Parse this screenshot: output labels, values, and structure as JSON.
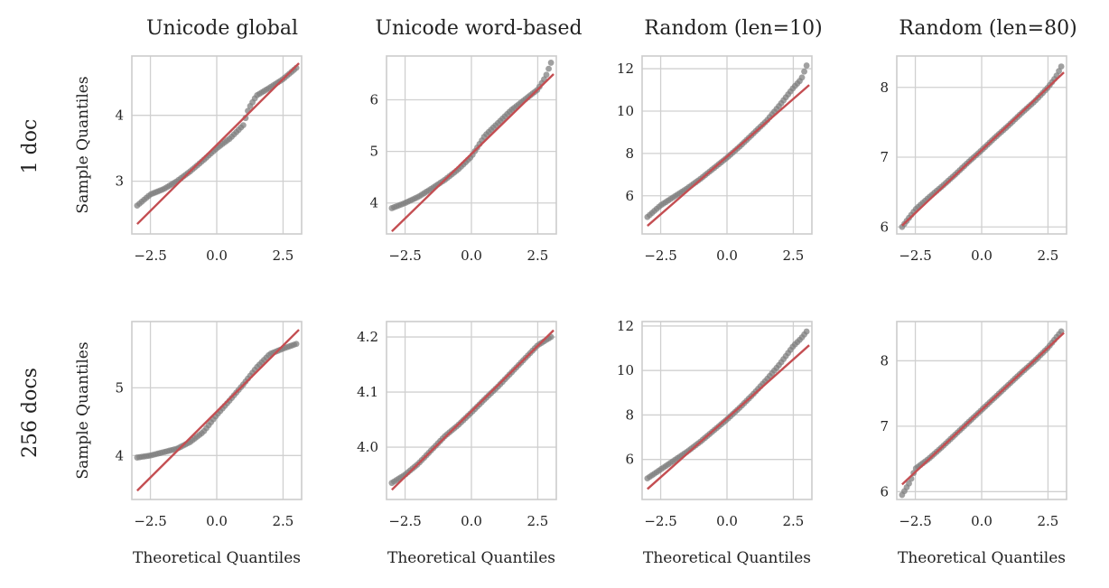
{
  "figure": {
    "row_labels": [
      "1 doc",
      "256 docs"
    ],
    "column_titles": [
      "Unicode global",
      "Unicode word-based",
      "Random (len=10)",
      "Random (len=80)"
    ],
    "xlabel": "Theoretical Quantiles",
    "ylabel": "Sample Quantiles"
  },
  "colors": {
    "points": "#808080",
    "reference_line": "#c44e52",
    "grid": "#d0d0d0",
    "frame": "#cccccc"
  },
  "chart_data": [
    {
      "type": "scatter",
      "title": "Unicode global",
      "row": "1 doc",
      "xlabel": "",
      "ylabel": "Sample Quantiles",
      "xlim": [
        -3.2,
        3.2
      ],
      "ylim": [
        2.2,
        4.9
      ],
      "xticks": [
        -2.5,
        0.0,
        2.5
      ],
      "xtick_labels": [
        "−2.5",
        "0.0",
        "2.5"
      ],
      "yticks": [
        3,
        4
      ],
      "ytick_labels": [
        "3",
        "4"
      ],
      "reference_line": {
        "slope": 0.4,
        "intercept": 3.55
      },
      "quantile_curve": [
        [
          -3.0,
          2.63
        ],
        [
          -2.5,
          2.8
        ],
        [
          -2.0,
          2.88
        ],
        [
          -1.5,
          3.0
        ],
        [
          -1.0,
          3.15
        ],
        [
          -0.5,
          3.32
        ],
        [
          0.0,
          3.5
        ],
        [
          0.5,
          3.65
        ],
        [
          1.0,
          3.85
        ],
        [
          1.2,
          4.1
        ],
        [
          1.5,
          4.3
        ],
        [
          2.0,
          4.42
        ],
        [
          2.5,
          4.55
        ],
        [
          3.0,
          4.72
        ]
      ],
      "grid": true
    },
    {
      "type": "scatter",
      "title": "Unicode word-based",
      "row": "1 doc",
      "xlabel": "",
      "ylabel": "",
      "xlim": [
        -3.2,
        3.2
      ],
      "ylim": [
        3.4,
        6.85
      ],
      "xticks": [
        -2.5,
        0.0,
        2.5
      ],
      "xtick_labels": [
        "−2.5",
        "0.0",
        "2.5"
      ],
      "yticks": [
        4,
        5,
        6
      ],
      "ytick_labels": [
        "4",
        "5",
        "6"
      ],
      "reference_line": {
        "slope": 0.5,
        "intercept": 4.95
      },
      "quantile_curve": [
        [
          -3.0,
          3.9
        ],
        [
          -2.5,
          4.0
        ],
        [
          -2.0,
          4.12
        ],
        [
          -1.5,
          4.28
        ],
        [
          -1.0,
          4.45
        ],
        [
          -0.5,
          4.65
        ],
        [
          0.0,
          4.9
        ],
        [
          0.5,
          5.3
        ],
        [
          1.0,
          5.55
        ],
        [
          1.5,
          5.8
        ],
        [
          2.0,
          6.0
        ],
        [
          2.5,
          6.2
        ],
        [
          2.8,
          6.45
        ],
        [
          3.0,
          6.72
        ]
      ],
      "grid": true
    },
    {
      "type": "scatter",
      "title": "Random (len=10)",
      "row": "1 doc",
      "xlabel": "",
      "ylabel": "",
      "xlim": [
        -3.2,
        3.2
      ],
      "ylim": [
        4.2,
        12.6
      ],
      "xticks": [
        -2.5,
        0.0,
        2.5
      ],
      "xtick_labels": [
        "−2.5",
        "0.0",
        "2.5"
      ],
      "yticks": [
        6,
        8,
        10,
        12
      ],
      "ytick_labels": [
        "6",
        "8",
        "10",
        "12"
      ],
      "reference_line": {
        "slope": 1.09,
        "intercept": 7.85
      },
      "quantile_curve": [
        [
          -3.0,
          5.0
        ],
        [
          -2.5,
          5.55
        ],
        [
          -2.0,
          5.95
        ],
        [
          -1.5,
          6.35
        ],
        [
          -1.0,
          6.8
        ],
        [
          -0.5,
          7.3
        ],
        [
          0.0,
          7.8
        ],
        [
          0.5,
          8.35
        ],
        [
          1.0,
          8.95
        ],
        [
          1.5,
          9.55
        ],
        [
          2.0,
          10.3
        ],
        [
          2.5,
          11.1
        ],
        [
          2.8,
          11.5
        ],
        [
          3.0,
          12.15
        ]
      ],
      "grid": true
    },
    {
      "type": "scatter",
      "title": "Random (len=80)",
      "row": "1 doc",
      "xlabel": "",
      "ylabel": "",
      "xlim": [
        -3.2,
        3.2
      ],
      "ylim": [
        5.9,
        8.45
      ],
      "xticks": [
        -2.5,
        0.0,
        2.5
      ],
      "xtick_labels": [
        "−2.5",
        "0.0",
        "2.5"
      ],
      "yticks": [
        6,
        7,
        8
      ],
      "ytick_labels": [
        "6",
        "7",
        "8"
      ],
      "reference_line": {
        "slope": 0.36,
        "intercept": 7.1
      },
      "quantile_curve": [
        [
          -3.0,
          6.0
        ],
        [
          -2.5,
          6.25
        ],
        [
          -2.0,
          6.42
        ],
        [
          -1.5,
          6.58
        ],
        [
          -1.0,
          6.75
        ],
        [
          -0.5,
          6.93
        ],
        [
          0.0,
          7.1
        ],
        [
          0.5,
          7.28
        ],
        [
          1.0,
          7.45
        ],
        [
          1.5,
          7.63
        ],
        [
          2.0,
          7.8
        ],
        [
          2.5,
          8.0
        ],
        [
          2.8,
          8.15
        ],
        [
          3.0,
          8.3
        ]
      ],
      "grid": true
    },
    {
      "type": "scatter",
      "title": "",
      "row": "256 docs",
      "xlabel": "Theoretical Quantiles",
      "ylabel": "Sample Quantiles",
      "xlim": [
        -3.2,
        3.2
      ],
      "ylim": [
        3.35,
        5.98
      ],
      "xticks": [
        -2.5,
        0.0,
        2.5
      ],
      "xtick_labels": [
        "−2.5",
        "0.0",
        "2.5"
      ],
      "yticks": [
        4,
        5
      ],
      "ytick_labels": [
        "4",
        "5"
      ],
      "reference_line": {
        "slope": 0.39,
        "intercept": 4.65
      },
      "quantile_curve": [
        [
          -3.0,
          3.97
        ],
        [
          -2.5,
          4.0
        ],
        [
          -2.0,
          4.05
        ],
        [
          -1.5,
          4.1
        ],
        [
          -1.0,
          4.2
        ],
        [
          -0.5,
          4.35
        ],
        [
          0.0,
          4.6
        ],
        [
          0.5,
          4.82
        ],
        [
          1.0,
          5.05
        ],
        [
          1.5,
          5.3
        ],
        [
          2.0,
          5.5
        ],
        [
          2.5,
          5.58
        ],
        [
          3.0,
          5.65
        ]
      ],
      "grid": true
    },
    {
      "type": "scatter",
      "title": "",
      "row": "256 docs",
      "xlabel": "Theoretical Quantiles",
      "ylabel": "",
      "xlim": [
        -3.2,
        3.2
      ],
      "ylim": [
        3.905,
        4.228
      ],
      "xticks": [
        -2.5,
        0.0,
        2.5
      ],
      "xtick_labels": [
        "−2.5",
        "0.0",
        "2.5"
      ],
      "yticks": [
        4.0,
        4.1,
        4.2
      ],
      "ytick_labels": [
        "4.0",
        "4.1",
        "4.2"
      ],
      "reference_line": {
        "slope": 0.0475,
        "intercept": 4.065
      },
      "quantile_curve": [
        [
          -3.0,
          3.935
        ],
        [
          -2.5,
          3.95
        ],
        [
          -2.0,
          3.97
        ],
        [
          -1.5,
          3.995
        ],
        [
          -1.0,
          4.02
        ],
        [
          -0.5,
          4.04
        ],
        [
          0.0,
          4.063
        ],
        [
          0.5,
          4.087
        ],
        [
          1.0,
          4.11
        ],
        [
          1.5,
          4.135
        ],
        [
          2.0,
          4.16
        ],
        [
          2.5,
          4.185
        ],
        [
          3.0,
          4.2
        ]
      ],
      "grid": true
    },
    {
      "type": "scatter",
      "title": "",
      "row": "256 docs",
      "xlabel": "Theoretical Quantiles",
      "ylabel": "",
      "xlim": [
        -3.2,
        3.2
      ],
      "ylim": [
        4.2,
        12.2
      ],
      "xticks": [
        -2.5,
        0.0,
        2.5
      ],
      "xtick_labels": [
        "−2.5",
        "0.0",
        "2.5"
      ],
      "yticks": [
        6,
        8,
        10,
        12
      ],
      "ytick_labels": [
        "6",
        "8",
        "10",
        "12"
      ],
      "reference_line": {
        "slope": 1.06,
        "intercept": 7.85
      },
      "quantile_curve": [
        [
          -3.0,
          5.15
        ],
        [
          -2.5,
          5.55
        ],
        [
          -2.0,
          5.95
        ],
        [
          -1.5,
          6.35
        ],
        [
          -1.0,
          6.8
        ],
        [
          -0.5,
          7.3
        ],
        [
          0.0,
          7.8
        ],
        [
          0.5,
          8.35
        ],
        [
          1.0,
          8.95
        ],
        [
          1.5,
          9.6
        ],
        [
          2.0,
          10.3
        ],
        [
          2.5,
          11.1
        ],
        [
          2.8,
          11.45
        ],
        [
          3.0,
          11.75
        ]
      ],
      "grid": true
    },
    {
      "type": "scatter",
      "title": "",
      "row": "256 docs",
      "xlabel": "Theoretical Quantiles",
      "ylabel": "",
      "xlim": [
        -3.2,
        3.2
      ],
      "ylim": [
        5.88,
        8.6
      ],
      "xticks": [
        -2.5,
        0.0,
        2.5
      ],
      "xtick_labels": [
        "−2.5",
        "0.0",
        "2.5"
      ],
      "yticks": [
        6,
        7,
        8
      ],
      "ytick_labels": [
        "6",
        "7",
        "8"
      ],
      "reference_line": {
        "slope": 0.38,
        "intercept": 7.25
      },
      "quantile_curve": [
        [
          -3.0,
          5.95
        ],
        [
          -2.7,
          6.15
        ],
        [
          -2.5,
          6.35
        ],
        [
          -2.0,
          6.5
        ],
        [
          -1.5,
          6.68
        ],
        [
          -1.0,
          6.87
        ],
        [
          -0.5,
          7.06
        ],
        [
          0.0,
          7.25
        ],
        [
          0.5,
          7.44
        ],
        [
          1.0,
          7.63
        ],
        [
          1.5,
          7.82
        ],
        [
          2.0,
          8.0
        ],
        [
          2.5,
          8.2
        ],
        [
          3.0,
          8.45
        ]
      ],
      "grid": true
    }
  ]
}
